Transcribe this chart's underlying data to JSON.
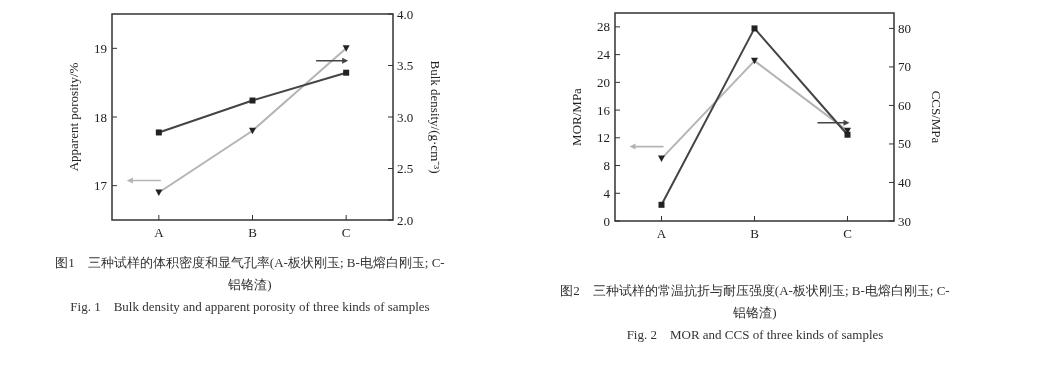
{
  "chart_data": [
    {
      "type": "line",
      "categories": [
        "A",
        "B",
        "C"
      ],
      "ylabel": "Apparent porosity/%",
      "y2label": "Bulk density/(g·cm⁻³)",
      "ylim": [
        16.5,
        19.5
      ],
      "yticks": [
        17,
        18,
        19
      ],
      "y2lim": [
        2,
        4
      ],
      "y2ticks": [
        {
          "value": 2,
          "label": "2.0"
        },
        {
          "value": 2.5,
          "label": "2.5"
        },
        {
          "value": 3,
          "label": "3.0"
        },
        {
          "value": 3.5,
          "label": "3.5"
        },
        {
          "value": 4,
          "label": "4.0"
        }
      ],
      "series": [
        {
          "color": "#b4b4b4",
          "values": [
            16.9,
            17.8,
            19.0
          ],
          "marker": "triangle"
        },
        {
          "color": "#444444",
          "values": [
            2.85,
            3.16,
            3.43
          ],
          "marker": "square",
          "axis": "y2"
        }
      ],
      "annotations": [
        "图1　三种试样的体积密度和显气孔率(A-板状刚玉; B-电熔白刚玉; C-铝铬渣)",
        "Fig. 1　Bulk density and apparent porosity of three kinds of samples"
      ]
    },
    {
      "type": "line",
      "categories": [
        "A",
        "B",
        "C"
      ],
      "ylabel": "MOR/MPa",
      "y2label": "CCS/MPa",
      "ylim": [
        0,
        30
      ],
      "yticks": [
        0,
        4,
        8,
        12,
        16,
        20,
        24,
        28
      ],
      "y2lim": [
        30,
        84
      ],
      "y2ticks": [
        30,
        40,
        50,
        60,
        70,
        80
      ],
      "series": [
        {
          "color": "#b4b4b4",
          "values": [
            9.0,
            23.1,
            13.0
          ],
          "marker": "triangle"
        },
        {
          "color": "#444444",
          "values": [
            34.2,
            80,
            52.4
          ],
          "marker": "square",
          "axis": "y2"
        }
      ],
      "annotations": [
        "图2　三种试样的常温抗折与耐压强度(A-板状刚玉; B-电熔白刚玉; C-铝铬渣)",
        "Fig. 2　MOR and CCS of three kinds of samples"
      ]
    }
  ]
}
